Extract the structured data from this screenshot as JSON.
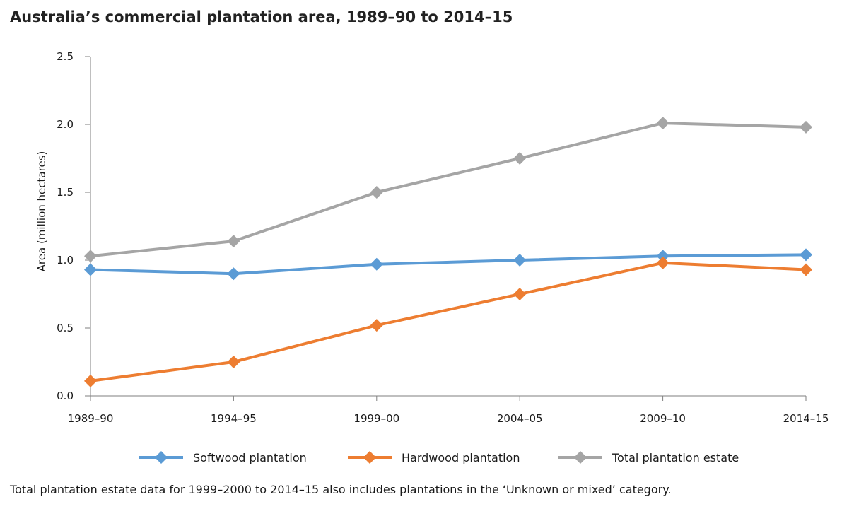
{
  "chart_data": {
    "type": "line",
    "title": "Australia’s commercial plantation area, 1989–90 to 2014–15",
    "xlabel": "",
    "ylabel": "Area (million hectares)",
    "ylim": [
      0,
      2.5
    ],
    "yticks": [
      "0.0",
      "0.5",
      "1.0",
      "1.5",
      "2.0",
      "2.5"
    ],
    "categories": [
      "1989–90",
      "1994–95",
      "1999–00",
      "2004–05",
      "2009–10",
      "2014–15"
    ],
    "grid": false,
    "legend_position": "bottom",
    "series": [
      {
        "name": "Softwood plantation",
        "color": "#5b9bd5",
        "marker": "diamond",
        "values": [
          0.93,
          0.9,
          0.97,
          1.0,
          1.03,
          1.04
        ]
      },
      {
        "name": "Hardwood plantation",
        "color": "#ed7d31",
        "marker": "diamond",
        "values": [
          0.11,
          0.25,
          0.52,
          0.75,
          0.98,
          0.93
        ]
      },
      {
        "name": "Total plantation estate",
        "color": "#a5a5a5",
        "marker": "diamond",
        "values": [
          1.03,
          1.14,
          1.5,
          1.75,
          2.01,
          1.98
        ]
      }
    ],
    "footnote": "Total plantation estate data for 1999–2000 to 2014–15 also includes plantations in the ‘Unknown or mixed’ category."
  }
}
